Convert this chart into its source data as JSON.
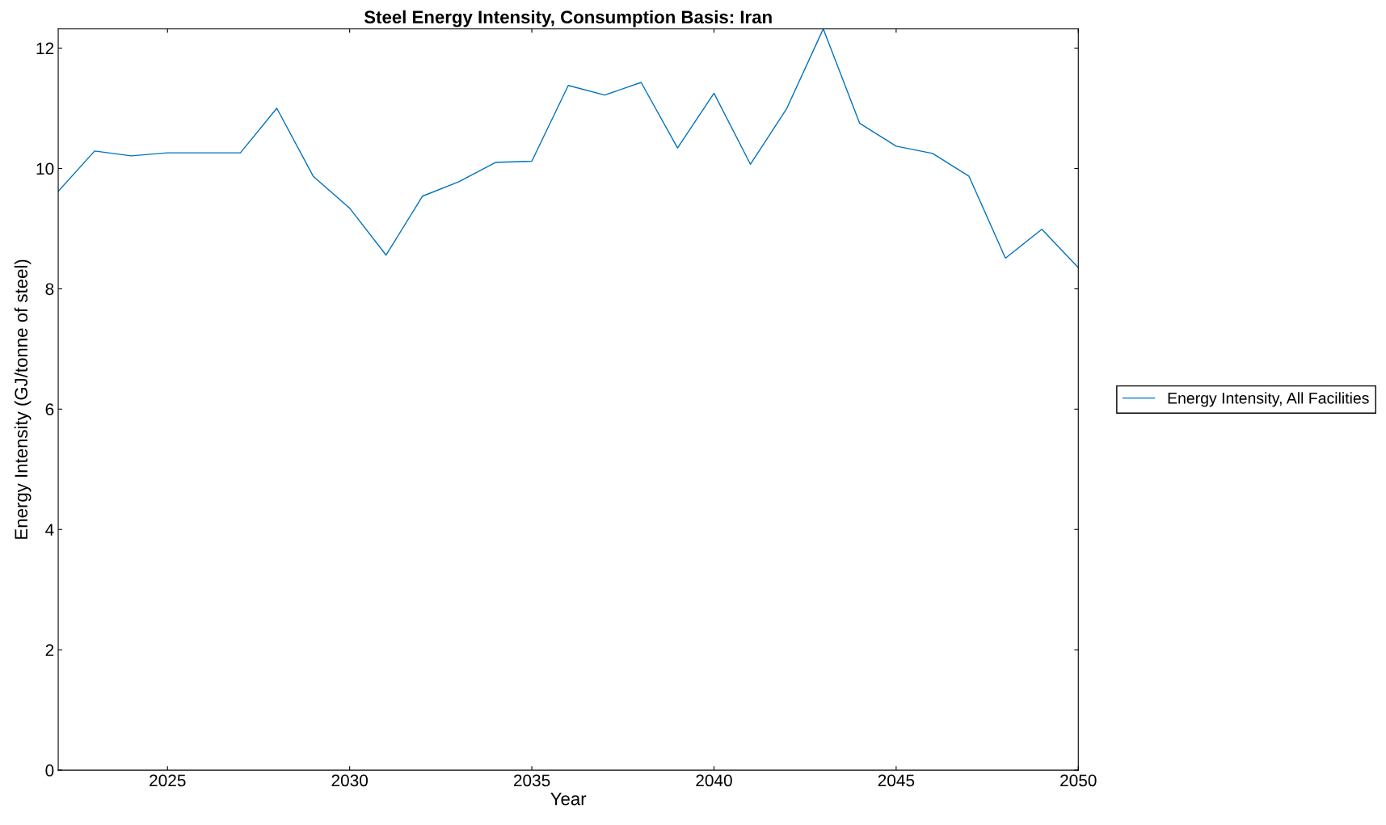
{
  "chart_data": {
    "type": "line",
    "title": "Steel Energy Intensity, Consumption Basis: Iran",
    "xlabel": "Year",
    "ylabel": "Energy Intensity (GJ/tonne of steel)",
    "x": [
      2022,
      2023,
      2024,
      2025,
      2026,
      2027,
      2028,
      2029,
      2030,
      2031,
      2032,
      2033,
      2034,
      2035,
      2036,
      2037,
      2038,
      2039,
      2040,
      2041,
      2042,
      2043,
      2044,
      2045,
      2046,
      2047,
      2048,
      2049,
      2050
    ],
    "series": [
      {
        "name": "Energy Intensity, All Facilities",
        "color": "#0072bd",
        "values": [
          9.62,
          10.29,
          10.21,
          10.26,
          10.26,
          10.26,
          11.0,
          9.87,
          9.34,
          8.56,
          9.54,
          9.78,
          10.1,
          10.12,
          11.38,
          11.22,
          11.43,
          10.34,
          11.25,
          10.07,
          11.0,
          12.32,
          10.75,
          10.37,
          10.25,
          9.87,
          8.51,
          8.99,
          8.35
        ]
      }
    ],
    "xlim": [
      2022,
      2050
    ],
    "ylim": [
      0,
      12.32
    ],
    "xticks": [
      2025,
      2030,
      2035,
      2040,
      2045,
      2050
    ],
    "yticks": [
      0,
      2,
      4,
      6,
      8,
      10,
      12
    ],
    "grid": false,
    "legend": "right",
    "marker": "none",
    "line_style": "solid"
  }
}
